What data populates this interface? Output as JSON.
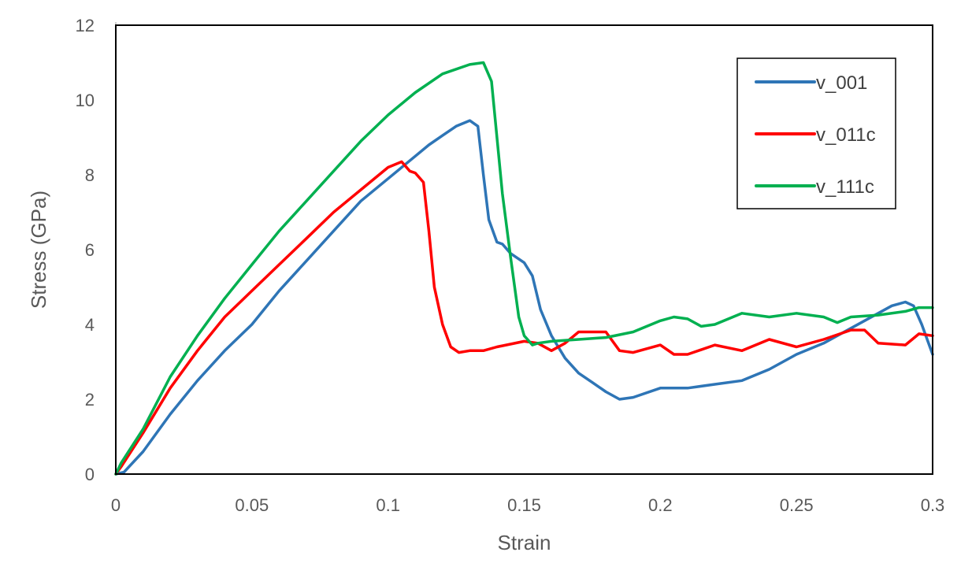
{
  "chart_data": {
    "type": "line",
    "title": "",
    "xlabel": "Strain",
    "ylabel": "Stress (GPa)",
    "xlim": [
      0,
      0.3
    ],
    "ylim": [
      0,
      12
    ],
    "x_ticks": [
      0,
      0.05,
      0.1,
      0.15,
      0.2,
      0.25,
      0.3
    ],
    "x_tick_labels": [
      "0",
      "0.05",
      "0.1",
      "0.15",
      "0.2",
      "0.25",
      "0.3"
    ],
    "y_ticks": [
      0,
      2,
      4,
      6,
      8,
      10,
      12
    ],
    "y_tick_labels": [
      "0",
      "2",
      "4",
      "6",
      "8",
      "10",
      "12"
    ],
    "grid": false,
    "legend_position": "top-right",
    "series": [
      {
        "name": "v_001",
        "color": "#2E75B6",
        "x": [
          0,
          0.003,
          0.01,
          0.02,
          0.03,
          0.04,
          0.05,
          0.06,
          0.07,
          0.08,
          0.09,
          0.1,
          0.11,
          0.115,
          0.12,
          0.125,
          0.13,
          0.133,
          0.135,
          0.137,
          0.14,
          0.142,
          0.145,
          0.15,
          0.153,
          0.156,
          0.16,
          0.165,
          0.17,
          0.175,
          0.18,
          0.185,
          0.19,
          0.2,
          0.21,
          0.22,
          0.23,
          0.24,
          0.25,
          0.26,
          0.27,
          0.28,
          0.285,
          0.29,
          0.293,
          0.296,
          0.3
        ],
        "y": [
          0,
          0.05,
          0.6,
          1.6,
          2.5,
          3.3,
          4.0,
          4.9,
          5.7,
          6.5,
          7.3,
          7.9,
          8.5,
          8.8,
          9.05,
          9.3,
          9.45,
          9.3,
          8.0,
          6.8,
          6.2,
          6.15,
          5.9,
          5.65,
          5.3,
          4.4,
          3.7,
          3.1,
          2.7,
          2.45,
          2.2,
          2.0,
          2.05,
          2.3,
          2.3,
          2.4,
          2.5,
          2.8,
          3.2,
          3.5,
          3.9,
          4.3,
          4.5,
          4.6,
          4.5,
          4.0,
          3.2
        ]
      },
      {
        "name": "v_011c",
        "color": "#FF0000",
        "x": [
          0,
          0.002,
          0.01,
          0.02,
          0.03,
          0.04,
          0.05,
          0.06,
          0.07,
          0.08,
          0.09,
          0.1,
          0.105,
          0.108,
          0.11,
          0.113,
          0.115,
          0.117,
          0.12,
          0.123,
          0.126,
          0.13,
          0.135,
          0.14,
          0.15,
          0.155,
          0.16,
          0.165,
          0.17,
          0.175,
          0.18,
          0.185,
          0.19,
          0.2,
          0.205,
          0.21,
          0.22,
          0.23,
          0.24,
          0.25,
          0.26,
          0.27,
          0.275,
          0.28,
          0.29,
          0.295,
          0.3
        ],
        "y": [
          0,
          0.2,
          1.1,
          2.3,
          3.3,
          4.2,
          4.9,
          5.6,
          6.3,
          7.0,
          7.6,
          8.2,
          8.35,
          8.1,
          8.05,
          7.8,
          6.5,
          5.0,
          4.0,
          3.4,
          3.25,
          3.3,
          3.3,
          3.4,
          3.55,
          3.5,
          3.3,
          3.5,
          3.8,
          3.8,
          3.8,
          3.3,
          3.25,
          3.45,
          3.2,
          3.2,
          3.45,
          3.3,
          3.6,
          3.4,
          3.6,
          3.85,
          3.85,
          3.5,
          3.45,
          3.75,
          3.7
        ]
      },
      {
        "name": "v_111c",
        "color": "#00B050",
        "x": [
          0,
          0.002,
          0.01,
          0.02,
          0.03,
          0.04,
          0.05,
          0.06,
          0.07,
          0.08,
          0.09,
          0.1,
          0.11,
          0.12,
          0.13,
          0.135,
          0.138,
          0.14,
          0.142,
          0.145,
          0.148,
          0.15,
          0.153,
          0.155,
          0.16,
          0.17,
          0.18,
          0.19,
          0.2,
          0.205,
          0.21,
          0.215,
          0.22,
          0.23,
          0.24,
          0.25,
          0.26,
          0.265,
          0.27,
          0.28,
          0.29,
          0.295,
          0.3
        ],
        "y": [
          0,
          0.3,
          1.2,
          2.6,
          3.7,
          4.7,
          5.6,
          6.5,
          7.3,
          8.1,
          8.9,
          9.6,
          10.2,
          10.7,
          10.95,
          11.0,
          10.5,
          9.0,
          7.5,
          5.8,
          4.2,
          3.7,
          3.45,
          3.5,
          3.55,
          3.6,
          3.65,
          3.8,
          4.1,
          4.2,
          4.15,
          3.95,
          4.0,
          4.3,
          4.2,
          4.3,
          4.2,
          4.05,
          4.2,
          4.25,
          4.35,
          4.45,
          4.45
        ]
      }
    ]
  }
}
